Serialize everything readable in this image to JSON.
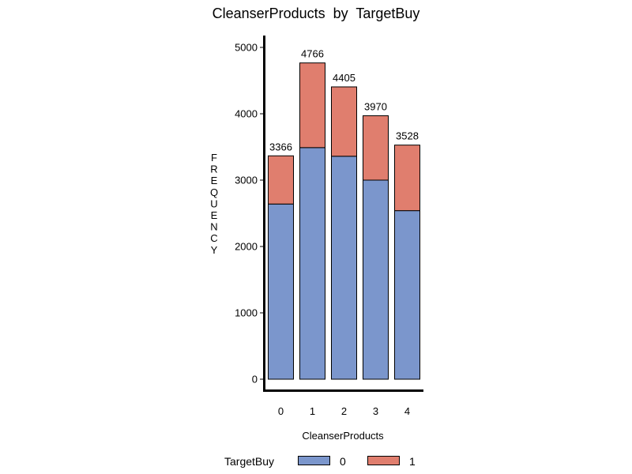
{
  "chart_data": {
    "type": "bar",
    "stacked": true,
    "title": "CleanserProducts  by  TargetBuy",
    "xlabel": "CleanserProducts",
    "ylabel": "FREQUENCY",
    "ylim": [
      0,
      5000
    ],
    "yticks": [
      0,
      1000,
      2000,
      3000,
      4000,
      5000
    ],
    "categories": [
      "0",
      "1",
      "2",
      "3",
      "4"
    ],
    "series": [
      {
        "name": "0",
        "color": "#7b96cc",
        "values": [
          2640,
          3490,
          3360,
          3000,
          2540
        ]
      },
      {
        "name": "1",
        "color": "#e07e6e",
        "values": [
          726,
          1276,
          1045,
          970,
          988
        ]
      }
    ],
    "totals": [
      3366,
      4766,
      4405,
      3970,
      3528
    ],
    "legend": {
      "title": "TargetBuy",
      "position": "bottom"
    },
    "grid": false
  }
}
